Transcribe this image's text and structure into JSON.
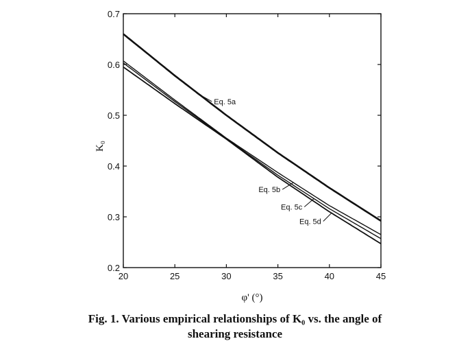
{
  "caption": {
    "line1": "Fig. 1.  Various empirical relationships of K₀ vs. the angle of",
    "line2": "shearing resistance"
  },
  "chart_data": {
    "type": "line",
    "title": "",
    "xlabel": "φ' (°)",
    "ylabel": "K₀",
    "xlim": [
      20,
      45
    ],
    "ylim": [
      0.2,
      0.7
    ],
    "xticks": [
      20,
      25,
      30,
      35,
      40,
      45
    ],
    "yticks": [
      0.2,
      0.3,
      0.4,
      0.5,
      0.6,
      0.7
    ],
    "grid": false,
    "x": [
      20,
      25,
      30,
      35,
      40,
      45
    ],
    "series": [
      {
        "name": "Eq. 5a",
        "values": [
          0.66,
          0.578,
          0.5,
          0.426,
          0.357,
          0.292
        ]
      },
      {
        "name": "Eq. 5b",
        "values": [
          0.607,
          0.53,
          0.455,
          0.387,
          0.322,
          0.265
        ]
      },
      {
        "name": "Eq. 5c",
        "values": [
          0.603,
          0.527,
          0.454,
          0.382,
          0.316,
          0.257
        ]
      },
      {
        "name": "Eq. 5d",
        "values": [
          0.595,
          0.523,
          0.453,
          0.378,
          0.31,
          0.247
        ]
      }
    ],
    "annotations": [
      {
        "text": "Eq. 5a",
        "series": 0,
        "x": 27.4,
        "y": 0.548
      },
      {
        "text": "Eq. 5b",
        "series": 1,
        "x": 36.5,
        "y": 0.362
      },
      {
        "text": "Eq. 5c",
        "series": 2,
        "x": 38.5,
        "y": 0.338
      },
      {
        "text": "Eq. 5d",
        "series": 3,
        "x": 40.2,
        "y": 0.308
      }
    ]
  }
}
